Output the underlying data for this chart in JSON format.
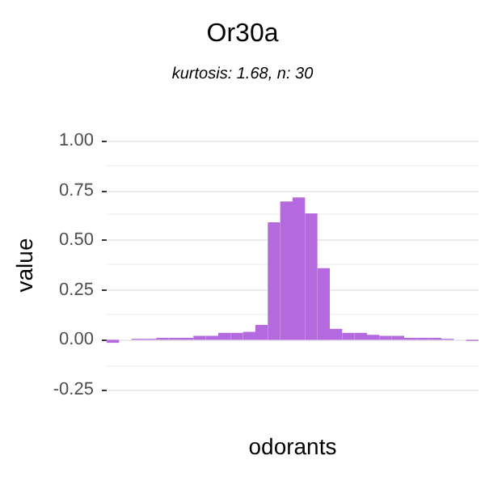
{
  "chart_data": {
    "type": "bar",
    "title": "Or30a",
    "subtitle": "kurtosis: 1.68, n: 30",
    "xlabel": "odorants",
    "ylabel": "value",
    "categories": [
      null,
      null,
      null,
      null,
      null,
      null,
      null,
      null,
      null,
      null,
      null,
      null,
      null,
      null,
      null,
      null,
      null,
      null,
      null,
      null,
      null,
      null,
      null,
      null,
      null,
      null,
      null,
      null,
      null,
      null
    ],
    "values": [
      -0.015,
      0,
      0.005,
      0.005,
      0.01,
      0.01,
      0.01,
      0.02,
      0.02,
      0.035,
      0.035,
      0.04,
      0.075,
      0.59,
      0.695,
      0.715,
      0.635,
      0.36,
      0.055,
      0.035,
      0.035,
      0.025,
      0.02,
      0.02,
      0.01,
      0.01,
      0.01,
      0.005,
      0,
      -0.005
    ],
    "color": "#b469de",
    "ylim": [
      -0.25,
      1
    ],
    "yticks": [
      {
        "value": -0.25,
        "label": "-0.25"
      },
      {
        "value": 0,
        "label": "0.00"
      },
      {
        "value": 0.25,
        "label": "0.25"
      },
      {
        "value": 0.5,
        "label": "0.50"
      },
      {
        "value": 0.75,
        "label": "0.75"
      },
      {
        "value": 1,
        "label": "1.00"
      }
    ],
    "grid": "y"
  }
}
